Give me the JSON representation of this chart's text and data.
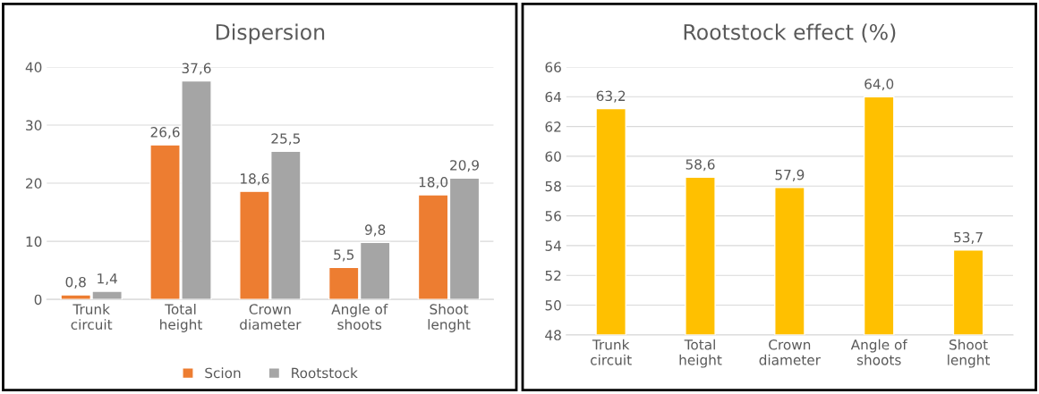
{
  "chart_data": [
    {
      "type": "bar",
      "title": "Dispersion",
      "categories": [
        "Trunk\ncircuit",
        "Total\nheight",
        "Crown\ndiameter",
        "Angle of\nshoots",
        "Shoot\nlenght"
      ],
      "series": [
        {
          "name": "Scion",
          "color": "#ed7d31",
          "values": [
            0.8,
            26.6,
            18.6,
            5.5,
            18.0
          ],
          "value_labels": [
            "0,8",
            "26,6",
            "18,6",
            "5,5",
            "18,0"
          ]
        },
        {
          "name": "Rootstock",
          "color": "#a5a5a5",
          "values": [
            1.4,
            37.6,
            25.5,
            9.8,
            20.9
          ],
          "value_labels": [
            "1,4",
            "37,6",
            "25,5",
            "9,8",
            "20,9"
          ]
        }
      ],
      "ylim": [
        0,
        40
      ],
      "yticks": [
        0,
        10,
        20,
        30,
        40
      ],
      "grid": "y",
      "legend": "bottom"
    },
    {
      "type": "bar",
      "title": "Rootstock effect (%)",
      "categories": [
        "Trunk\ncircuit",
        "Total\nheight",
        "Crown\ndiameter",
        "Angle of\nshoots",
        "Shoot\nlenght"
      ],
      "series": [
        {
          "color": "#ffc000",
          "values": [
            63.2,
            58.6,
            57.9,
            64.0,
            53.7
          ],
          "value_labels": [
            "63,2",
            "58,6",
            "57,9",
            "64,0",
            "53,7"
          ]
        }
      ],
      "ylim": [
        48,
        66
      ],
      "yticks": [
        48,
        50,
        52,
        54,
        56,
        58,
        60,
        62,
        64,
        66
      ],
      "grid": "y"
    }
  ]
}
